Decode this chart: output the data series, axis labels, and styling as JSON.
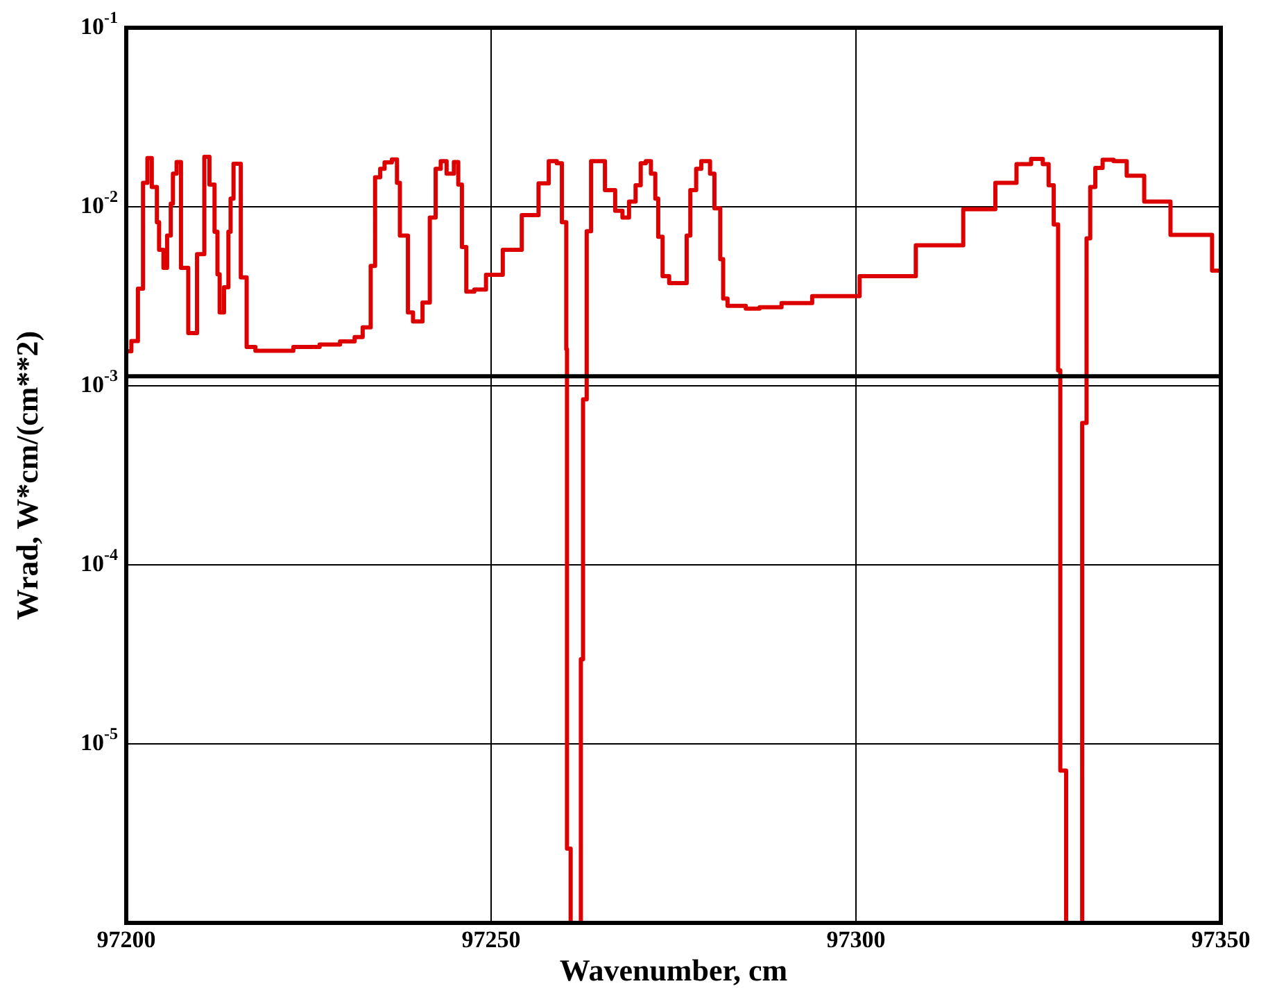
{
  "chart_data": {
    "type": "step",
    "xlabel": "Wavenumber, cm",
    "ylabel": "Wrad, W*cm/(cm**2)",
    "xlim": [
      97200,
      97350
    ],
    "xticks": [
      97200,
      97250,
      97300,
      97350
    ],
    "ylim": [
      1e-06,
      0.1
    ],
    "yticks": [
      {
        "value": 1e-06,
        "label": null
      },
      {
        "value": 1e-05,
        "label": "10$^{-5}$"
      },
      {
        "value": 0.0001,
        "label": "10$^{-4}$"
      },
      {
        "value": 0.001,
        "label": "10$^{-3}$"
      },
      {
        "value": 0.01,
        "label": "10$^{-2}$"
      },
      {
        "value": 0.1,
        "label": "10$^{-1}$"
      }
    ],
    "log": "y",
    "grid": true,
    "legend": false,
    "marker": "none",
    "line_style": "solid",
    "ref_lines": [
      {
        "axis": "y",
        "value": 0.00113,
        "color": "#000000"
      }
    ],
    "series": [
      {
        "color": "#dd0000",
        "x": [
          97200,
          97200.7,
          97201.6,
          97202.3,
          97202.9,
          97203.5,
          97204.2,
          97204.5,
          97205.1,
          97205.6,
          97206.1,
          97206.4,
          97206.9,
          97207.5,
          97208.5,
          97209.7,
          97210.7,
          97211.4,
          97212.1,
          97212.5,
          97212.8,
          97213.4,
          97214.0,
          97214.3,
          97214.7,
          97215.7,
          97216.5,
          97217.7,
          97222.9,
          97226.5,
          97229.3,
          97231.3,
          97232.4,
          97233.5,
          97234.1,
          97234.8,
          97235.4,
          97236.4,
          97237.1,
          97237.5,
          97238.6,
          97239.3,
          97240.6,
          97241.6,
          97242.4,
          97243.1,
          97243.9,
          97244.9,
          97245.5,
          97246.0,
          97246.6,
          97247.7,
          97249.3,
          97251.6,
          97254.2,
          97256.5,
          97257.9,
          97259.0,
          97259.7,
          97260.3,
          97260.4,
          97260.9,
          97262.3,
          97262.6,
          97263.1,
          97263.7,
          97265.6,
          97267.0,
          97268.0,
          97268.9,
          97269.8,
          97270.5,
          97271.2,
          97271.9,
          97272.5,
          97272.9,
          97273.5,
          97274.4,
          97276.8,
          97277.3,
          97278.1,
          97278.8,
          97280.0,
          97280.6,
          97281.4,
          97281.8,
          97282.4,
          97284.9,
          97286.8,
          97289.8,
          97294.0,
          97300.5,
          97308.2,
          97314.7,
          97319.1,
          97322.0,
          97324.0,
          97325.6,
          97326.4,
          97327.1,
          97327.7,
          97328.0,
          97328.8,
          97331.0,
          97331.6,
          97332.1,
          97332.8,
          97333.8,
          97335.3,
          97337.1,
          97339.5,
          97343.1,
          97348.8,
          97350
        ],
        "values": [
          0.00156,
          0.00178,
          0.00349,
          0.0136,
          0.0187,
          0.0129,
          0.0082,
          0.00575,
          0.00456,
          0.0069,
          0.0104,
          0.0153,
          0.0178,
          0.00456,
          0.00197,
          0.00544,
          0.019,
          0.0133,
          0.00725,
          0.0042,
          0.00257,
          0.00355,
          0.00725,
          0.0111,
          0.0174,
          0.00403,
          0.00165,
          0.00157,
          0.00165,
          0.0017,
          0.00177,
          0.00187,
          0.00212,
          0.00467,
          0.0146,
          0.0163,
          0.0177,
          0.0184,
          0.0136,
          0.0069,
          0.00257,
          0.00229,
          0.00292,
          0.0087,
          0.0163,
          0.018,
          0.0153,
          0.0178,
          0.0133,
          0.00596,
          0.00336,
          0.00345,
          0.00417,
          0.00575,
          0.00898,
          0.0135,
          0.018,
          0.0175,
          0.0082,
          0.0016,
          2.6e-06,
          1e-06,
          2.97e-05,
          0.00084,
          0.0073,
          0.018,
          0.0124,
          0.0095,
          0.0087,
          0.0107,
          0.0132,
          0.0175,
          0.018,
          0.0153,
          0.0111,
          0.0068,
          0.0041,
          0.00375,
          0.0069,
          0.0124,
          0.0163,
          0.018,
          0.0153,
          0.0098,
          0.0051,
          0.00307,
          0.0028,
          0.0027,
          0.00275,
          0.0029,
          0.00317,
          0.0041,
          0.0061,
          0.0097,
          0.0136,
          0.0173,
          0.0185,
          0.0173,
          0.0132,
          0.00796,
          0.00122,
          7.1e-06,
          1e-06,
          0.00062,
          0.00667,
          0.0129,
          0.0165,
          0.0183,
          0.018,
          0.0149,
          0.0107,
          0.00696,
          0.0044,
          0.0044
        ]
      }
    ]
  }
}
